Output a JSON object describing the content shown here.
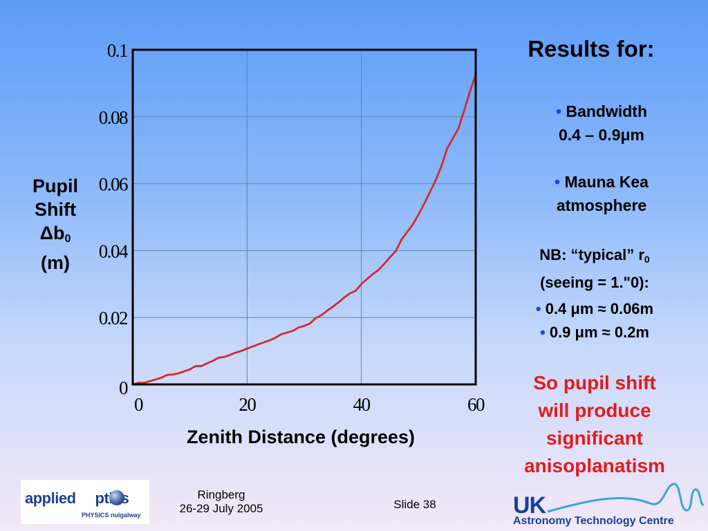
{
  "slide": {
    "title": "Results for:",
    "bullets_top": [
      {
        "line1": "Bandwidth",
        "line2": "0.4 – 0.9μm"
      },
      {
        "line1": "Mauna Kea",
        "line2": "atmosphere"
      }
    ],
    "nb": {
      "line1_prefix": "NB: “typical” r",
      "line1_sub": "0",
      "line2": "(seeing = 1.\"0):"
    },
    "bullets_bottom": [
      "0.4 μm ≈ 0.06m",
      "0.9 μm ≈ 0.2m"
    ],
    "conclusion": [
      "So pupil shift",
      "will produce",
      "significant",
      "anisoplanatism"
    ],
    "footer": {
      "venue": "Ringberg",
      "dates": "26-29 July 2005",
      "slide_number": "Slide 38"
    },
    "logos": {
      "applied_optics": {
        "text": "applied optics",
        "main_left": "applied",
        "main_right": "ptics",
        "sub": "PHYSICS nuigalway"
      },
      "atc": {
        "uk": "UK",
        "name": "Astronomy Technology Centre"
      }
    },
    "colors": {
      "conclusion": "#e41b1b",
      "bullet": "#1a44d9",
      "curve": "#d42a2a"
    }
  },
  "chart_data": {
    "type": "line",
    "xlabel": "Zenith Distance (degrees)",
    "ylabel": {
      "line1": "Pupil",
      "line2": "Shift",
      "line3_prefix": "Δb",
      "line3_sub": "0",
      "line4": "(m)"
    },
    "xlim": [
      0,
      60
    ],
    "ylim": [
      0,
      0.1
    ],
    "x_ticks": [
      "0",
      "20",
      "40",
      "60"
    ],
    "y_ticks": [
      "0",
      "0.02",
      "0.04",
      "0.06",
      "0.08",
      "0.1"
    ],
    "grid": true,
    "series": [
      {
        "x": [
          0,
          1,
          2,
          3,
          5,
          6,
          7,
          8,
          10,
          11,
          12,
          13,
          14,
          15,
          16,
          17,
          18,
          19,
          20,
          22,
          24,
          25,
          26,
          27,
          28,
          29,
          30,
          31,
          32,
          33,
          34,
          35,
          36,
          37,
          38,
          39,
          40,
          41,
          42,
          43,
          44,
          45,
          46,
          47,
          48,
          49,
          50,
          51,
          52,
          53,
          54,
          55,
          56,
          57,
          58,
          59,
          60
        ],
        "y": [
          0,
          0.0005,
          0.0005,
          0.001,
          0.002,
          0.0028,
          0.003,
          0.0033,
          0.0045,
          0.0055,
          0.0055,
          0.0063,
          0.007,
          0.008,
          0.0082,
          0.0088,
          0.0095,
          0.01,
          0.0107,
          0.012,
          0.0132,
          0.014,
          0.015,
          0.0155,
          0.016,
          0.017,
          0.0175,
          0.0182,
          0.0198,
          0.0207,
          0.022,
          0.0232,
          0.0245,
          0.026,
          0.0272,
          0.028,
          0.03,
          0.0315,
          0.033,
          0.0342,
          0.036,
          0.038,
          0.0398,
          0.0432,
          0.0455,
          0.0478,
          0.0508,
          0.054,
          0.0575,
          0.061,
          0.0652,
          0.0705,
          0.0735,
          0.0765,
          0.082,
          0.0875,
          0.0925
        ]
      }
    ]
  }
}
